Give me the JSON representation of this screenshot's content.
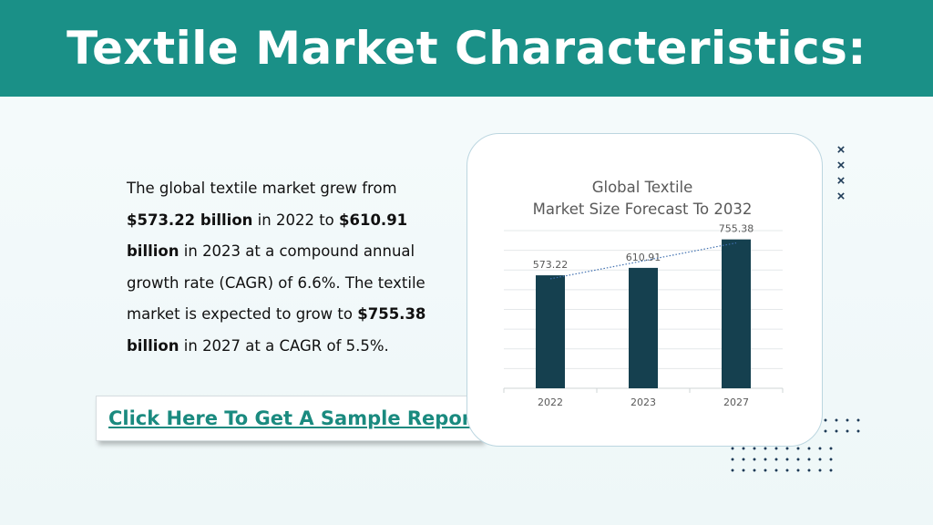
{
  "header": {
    "title": "Textile Market Characteristics:"
  },
  "description": {
    "p1": "The global textile market grew from ",
    "b1": "$573.22 billion",
    "p2": " in 2022 to ",
    "b2": "$610.91 billion",
    "p3": " in 2023 at a compound annual growth rate (CAGR) of 6.6%. The textile market is expected to grow to ",
    "b3": "$755.38 billion",
    "p4": " in 2027 at a CAGR of 5.5%."
  },
  "cta": {
    "label": "Click Here To Get A Sample Report"
  },
  "decor": {
    "x_mark": "×",
    "x_count": 4
  },
  "chart_data": {
    "type": "bar",
    "title_lines": [
      "Global Textile",
      "Market Size Forecast To 2032"
    ],
    "categories": [
      "2022",
      "2023",
      "2027"
    ],
    "values": [
      573.22,
      610.91,
      755.38
    ],
    "data_labels": [
      "573.22",
      "610.91",
      "755.38"
    ],
    "ylim": [
      0,
      800
    ],
    "grid": true,
    "trendline": "linear, dotted",
    "xlabel": "",
    "ylabel": "",
    "colors": {
      "bar": "#15404f",
      "trend": "#3f6fb0",
      "grid": "#e4e8ea",
      "text": "#595959"
    }
  }
}
